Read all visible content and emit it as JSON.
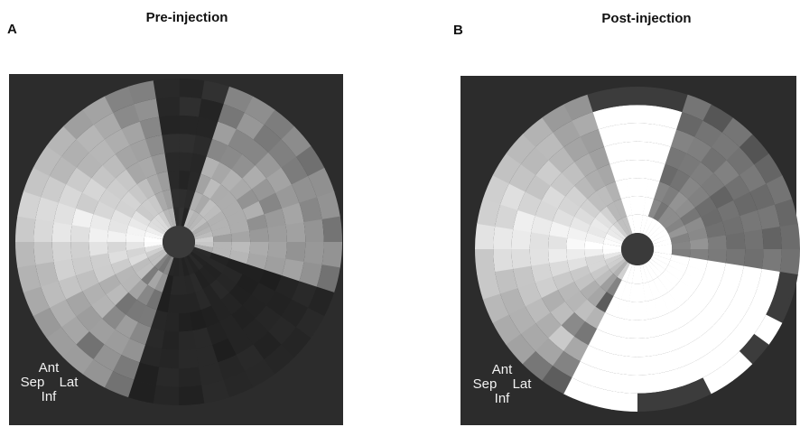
{
  "panels": [
    {
      "letter": "A",
      "title": "Pre-injection",
      "orientation": {
        "anterior": "Ant",
        "septal": "Sep",
        "lateral": "Lat",
        "inferior": "Inf"
      }
    },
    {
      "letter": "B",
      "title": "Post-injection",
      "orientation": {
        "anterior": "Ant",
        "septal": "Sep",
        "lateral": "Lat",
        "inferior": "Inf"
      }
    }
  ]
}
